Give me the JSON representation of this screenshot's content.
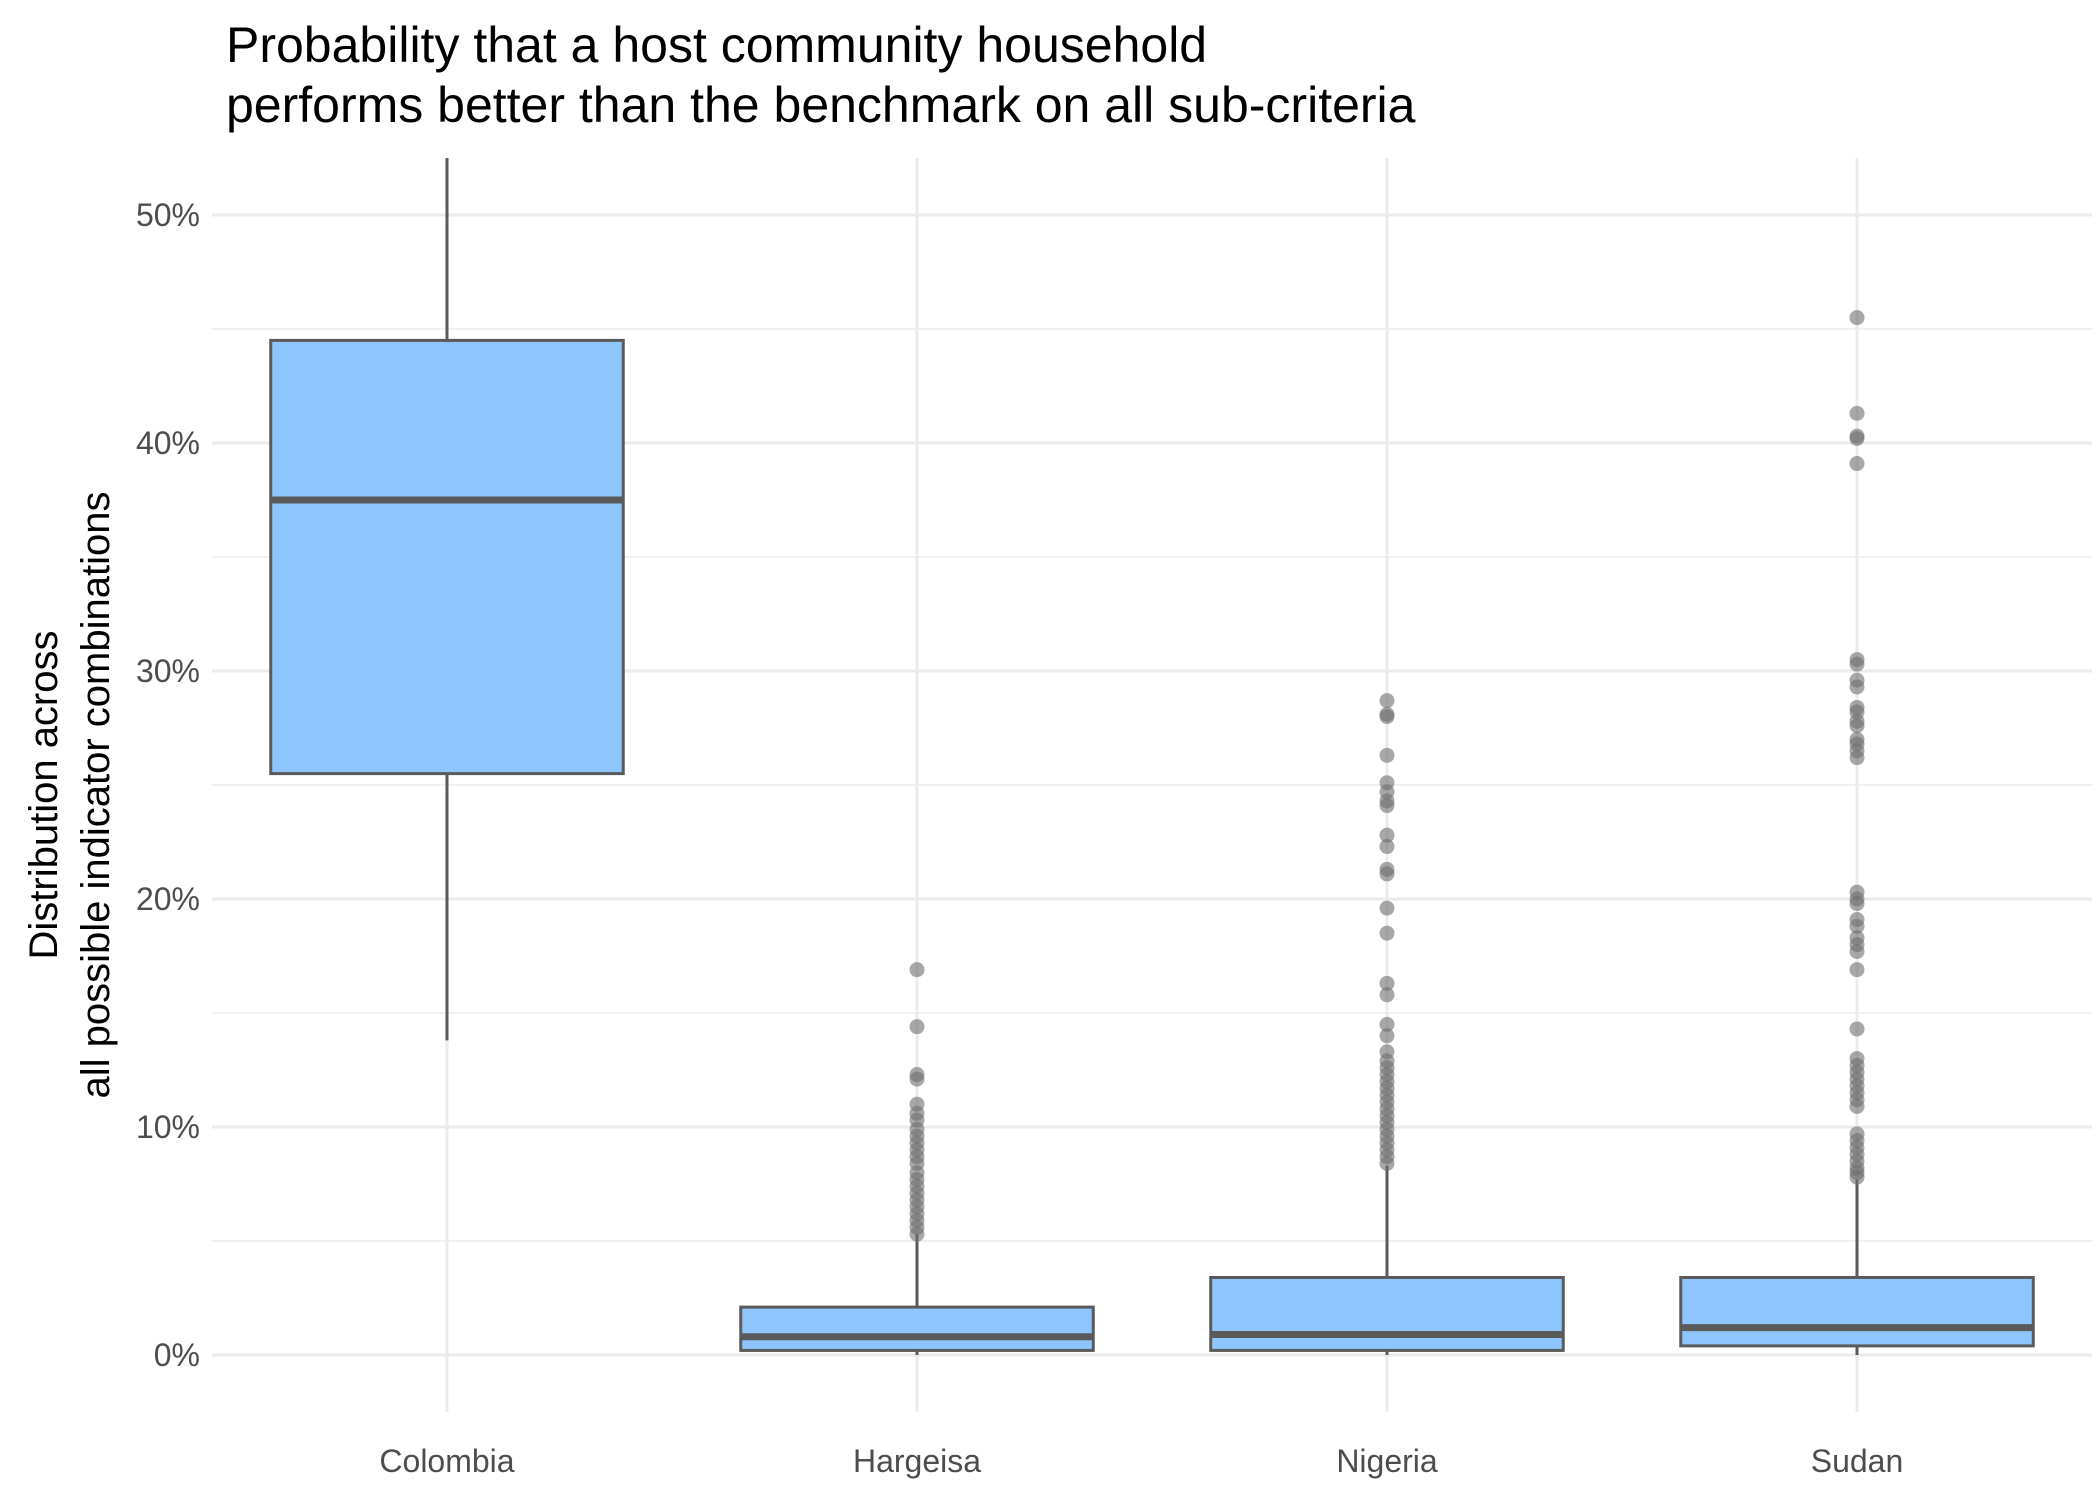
{
  "chart_data": {
    "type": "boxplot",
    "title_lines": [
      "Probability that a host community household",
      "performs better than the benchmark on all sub-criteria"
    ],
    "xlabel": "",
    "ylabel_lines": [
      "Distribution across",
      "all possible indicator combinations"
    ],
    "ylim": [
      -2.5,
      52.5
    ],
    "y_major_ticks": [
      0,
      10,
      20,
      30,
      40,
      50
    ],
    "y_tick_labels": [
      "0%",
      "10%",
      "20%",
      "30%",
      "40%",
      "50%"
    ],
    "y_minor_ticks": [
      5,
      15,
      25,
      35,
      45
    ],
    "categories": [
      "Colombia",
      "Hargeisa",
      "Nigeria",
      "Sudan"
    ],
    "grid": true,
    "colors": {
      "box_fill": "#8ec5fd",
      "box_outline": "#5a5a5a",
      "outlier": "#6e6e6e",
      "grid": "#ebebeb"
    },
    "boxes": [
      {
        "category": "Colombia",
        "whisker_low": 13.8,
        "q1": 25.5,
        "median": 37.5,
        "q3": 44.5,
        "whisker_high": 52.5,
        "outliers": []
      },
      {
        "category": "Hargeisa",
        "whisker_low": 0.0,
        "q1": 0.2,
        "median": 0.8,
        "q3": 2.1,
        "whisker_high": 5.3,
        "outliers": [
          5.3,
          5.6,
          5.9,
          6.2,
          6.5,
          6.8,
          7.1,
          7.4,
          7.7,
          8.0,
          8.4,
          8.7,
          9.0,
          9.3,
          9.6,
          9.9,
          10.3,
          10.6,
          11.0,
          12.1,
          12.3,
          14.4,
          16.9
        ]
      },
      {
        "category": "Nigeria",
        "whisker_low": 0.0,
        "q1": 0.2,
        "median": 0.9,
        "q3": 3.4,
        "whisker_high": 8.3,
        "outliers": [
          8.4,
          8.7,
          9.0,
          9.3,
          9.6,
          9.9,
          10.2,
          10.5,
          10.8,
          11.1,
          11.4,
          11.7,
          12.0,
          12.3,
          12.6,
          12.9,
          13.3,
          14.0,
          14.5,
          15.8,
          16.3,
          18.5,
          19.6,
          21.1,
          21.3,
          22.3,
          22.8,
          24.1,
          24.3,
          24.7,
          25.1,
          26.3,
          28.0,
          28.1,
          28.7
        ]
      },
      {
        "category": "Sudan",
        "whisker_low": 0.0,
        "q1": 0.4,
        "median": 1.2,
        "q3": 3.4,
        "whisker_high": 7.7,
        "outliers": [
          7.8,
          8.0,
          8.2,
          8.5,
          8.8,
          9.1,
          9.4,
          9.7,
          10.9,
          11.2,
          11.5,
          11.8,
          12.1,
          12.4,
          12.7,
          13.0,
          14.3,
          16.9,
          17.7,
          18.0,
          18.3,
          18.8,
          19.1,
          19.8,
          20.0,
          20.3,
          26.2,
          26.5,
          26.8,
          27.0,
          27.6,
          27.8,
          28.2,
          28.4,
          29.3,
          29.6,
          30.3,
          30.5,
          39.1,
          40.2,
          40.3,
          41.3,
          45.5
        ]
      }
    ]
  }
}
